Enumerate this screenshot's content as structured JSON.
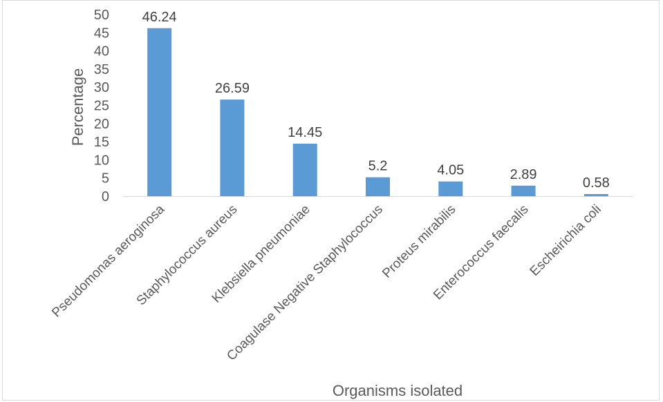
{
  "chart_data": {
    "type": "bar",
    "categories": [
      "Pseudomonas aeroginosa",
      "Staphylococcus aureus",
      "Klebsiella pneumoniae",
      "Coagulase Negative Staphylococcus",
      "Proteus mirabilis",
      "Enterococcus faecalis",
      "Escheirichia coli"
    ],
    "values": [
      46.24,
      26.59,
      14.45,
      5.2,
      4.05,
      2.89,
      0.58
    ],
    "data_labels": [
      "46.24",
      "26.59",
      "14.45",
      "5.2",
      "4.05",
      "2.89",
      "0.58"
    ],
    "xlabel": "Organisms isolated",
    "ylabel": "Percentage",
    "ylim": [
      0,
      50
    ],
    "yticks": [
      0,
      5,
      10,
      15,
      20,
      25,
      30,
      35,
      40,
      45,
      50
    ],
    "grid": false,
    "legend": "none",
    "bar_color": "#5b9bd5"
  }
}
